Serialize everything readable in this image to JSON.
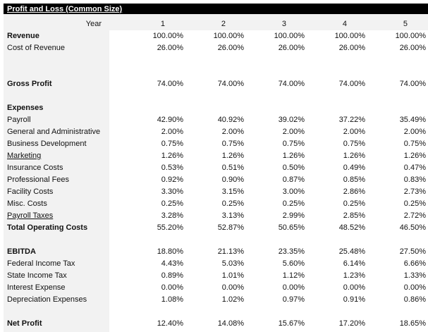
{
  "title": "Profit and Loss (Common Size)",
  "year_label": "Year",
  "years": [
    "1",
    "2",
    "3",
    "4",
    "5"
  ],
  "rows": [
    {
      "label": "Revenue",
      "bold": true,
      "values": [
        "100.00%",
        "100.00%",
        "100.00%",
        "100.00%",
        "100.00%"
      ]
    },
    {
      "label": "Cost of Revenue",
      "values": [
        "26.00%",
        "26.00%",
        "26.00%",
        "26.00%",
        "26.00%"
      ]
    },
    {
      "label": "",
      "values": [
        "",
        "",
        "",
        "",
        ""
      ]
    },
    {
      "label": "",
      "values": [
        "",
        "",
        "",
        "",
        ""
      ]
    },
    {
      "label": "Gross Profit",
      "bold": true,
      "values": [
        "74.00%",
        "74.00%",
        "74.00%",
        "74.00%",
        "74.00%"
      ]
    },
    {
      "label": "",
      "values": [
        "",
        "",
        "",
        "",
        ""
      ]
    },
    {
      "label": "Expenses",
      "bold": true,
      "values": [
        "",
        "",
        "",
        "",
        ""
      ]
    },
    {
      "label": "Payroll",
      "values": [
        "42.90%",
        "40.92%",
        "39.02%",
        "37.22%",
        "35.49%"
      ]
    },
    {
      "label": "General and Administrative",
      "values": [
        "2.00%",
        "2.00%",
        "2.00%",
        "2.00%",
        "2.00%"
      ]
    },
    {
      "label": "Business Development",
      "values": [
        "0.75%",
        "0.75%",
        "0.75%",
        "0.75%",
        "0.75%"
      ]
    },
    {
      "label": "Marketing",
      "values": [
        "1.26%",
        "1.26%",
        "1.26%",
        "1.26%",
        "1.26%"
      ]
    },
    {
      "label": "Insurance Costs",
      "values": [
        "0.53%",
        "0.51%",
        "0.50%",
        "0.49%",
        "0.47%"
      ]
    },
    {
      "label": "Professional Fees",
      "values": [
        "0.92%",
        "0.90%",
        "0.87%",
        "0.85%",
        "0.83%"
      ]
    },
    {
      "label": "Facility Costs",
      "values": [
        "3.30%",
        "3.15%",
        "3.00%",
        "2.86%",
        "2.73%"
      ]
    },
    {
      "label": "Misc. Costs",
      "values": [
        "0.25%",
        "0.25%",
        "0.25%",
        "0.25%",
        "0.25%"
      ]
    },
    {
      "label": "Payroll Taxes",
      "values": [
        "3.28%",
        "3.13%",
        "2.99%",
        "2.85%",
        "2.72%"
      ]
    },
    {
      "label": "Total Operating Costs",
      "bold": true,
      "values": [
        "55.20%",
        "52.87%",
        "50.65%",
        "48.52%",
        "46.50%"
      ]
    },
    {
      "label": "",
      "values": [
        "",
        "",
        "",
        "",
        ""
      ]
    },
    {
      "label": "EBITDA",
      "bold": true,
      "values": [
        "18.80%",
        "21.13%",
        "23.35%",
        "25.48%",
        "27.50%"
      ]
    },
    {
      "label": "Federal Income Tax",
      "values": [
        "4.43%",
        "5.03%",
        "5.60%",
        "6.14%",
        "6.66%"
      ]
    },
    {
      "label": "State Income Tax",
      "values": [
        "0.89%",
        "1.01%",
        "1.12%",
        "1.23%",
        "1.33%"
      ]
    },
    {
      "label": "Interest Expense",
      "values": [
        "0.00%",
        "0.00%",
        "0.00%",
        "0.00%",
        "0.00%"
      ]
    },
    {
      "label": "Depreciation Expenses",
      "values": [
        "1.08%",
        "1.02%",
        "0.97%",
        "0.91%",
        "0.86%"
      ]
    },
    {
      "label": "",
      "values": [
        "",
        "",
        "",
        "",
        ""
      ]
    },
    {
      "label": "Net Profit",
      "bold": true,
      "values": [
        "12.40%",
        "14.08%",
        "15.67%",
        "17.20%",
        "18.65%"
      ]
    }
  ]
}
